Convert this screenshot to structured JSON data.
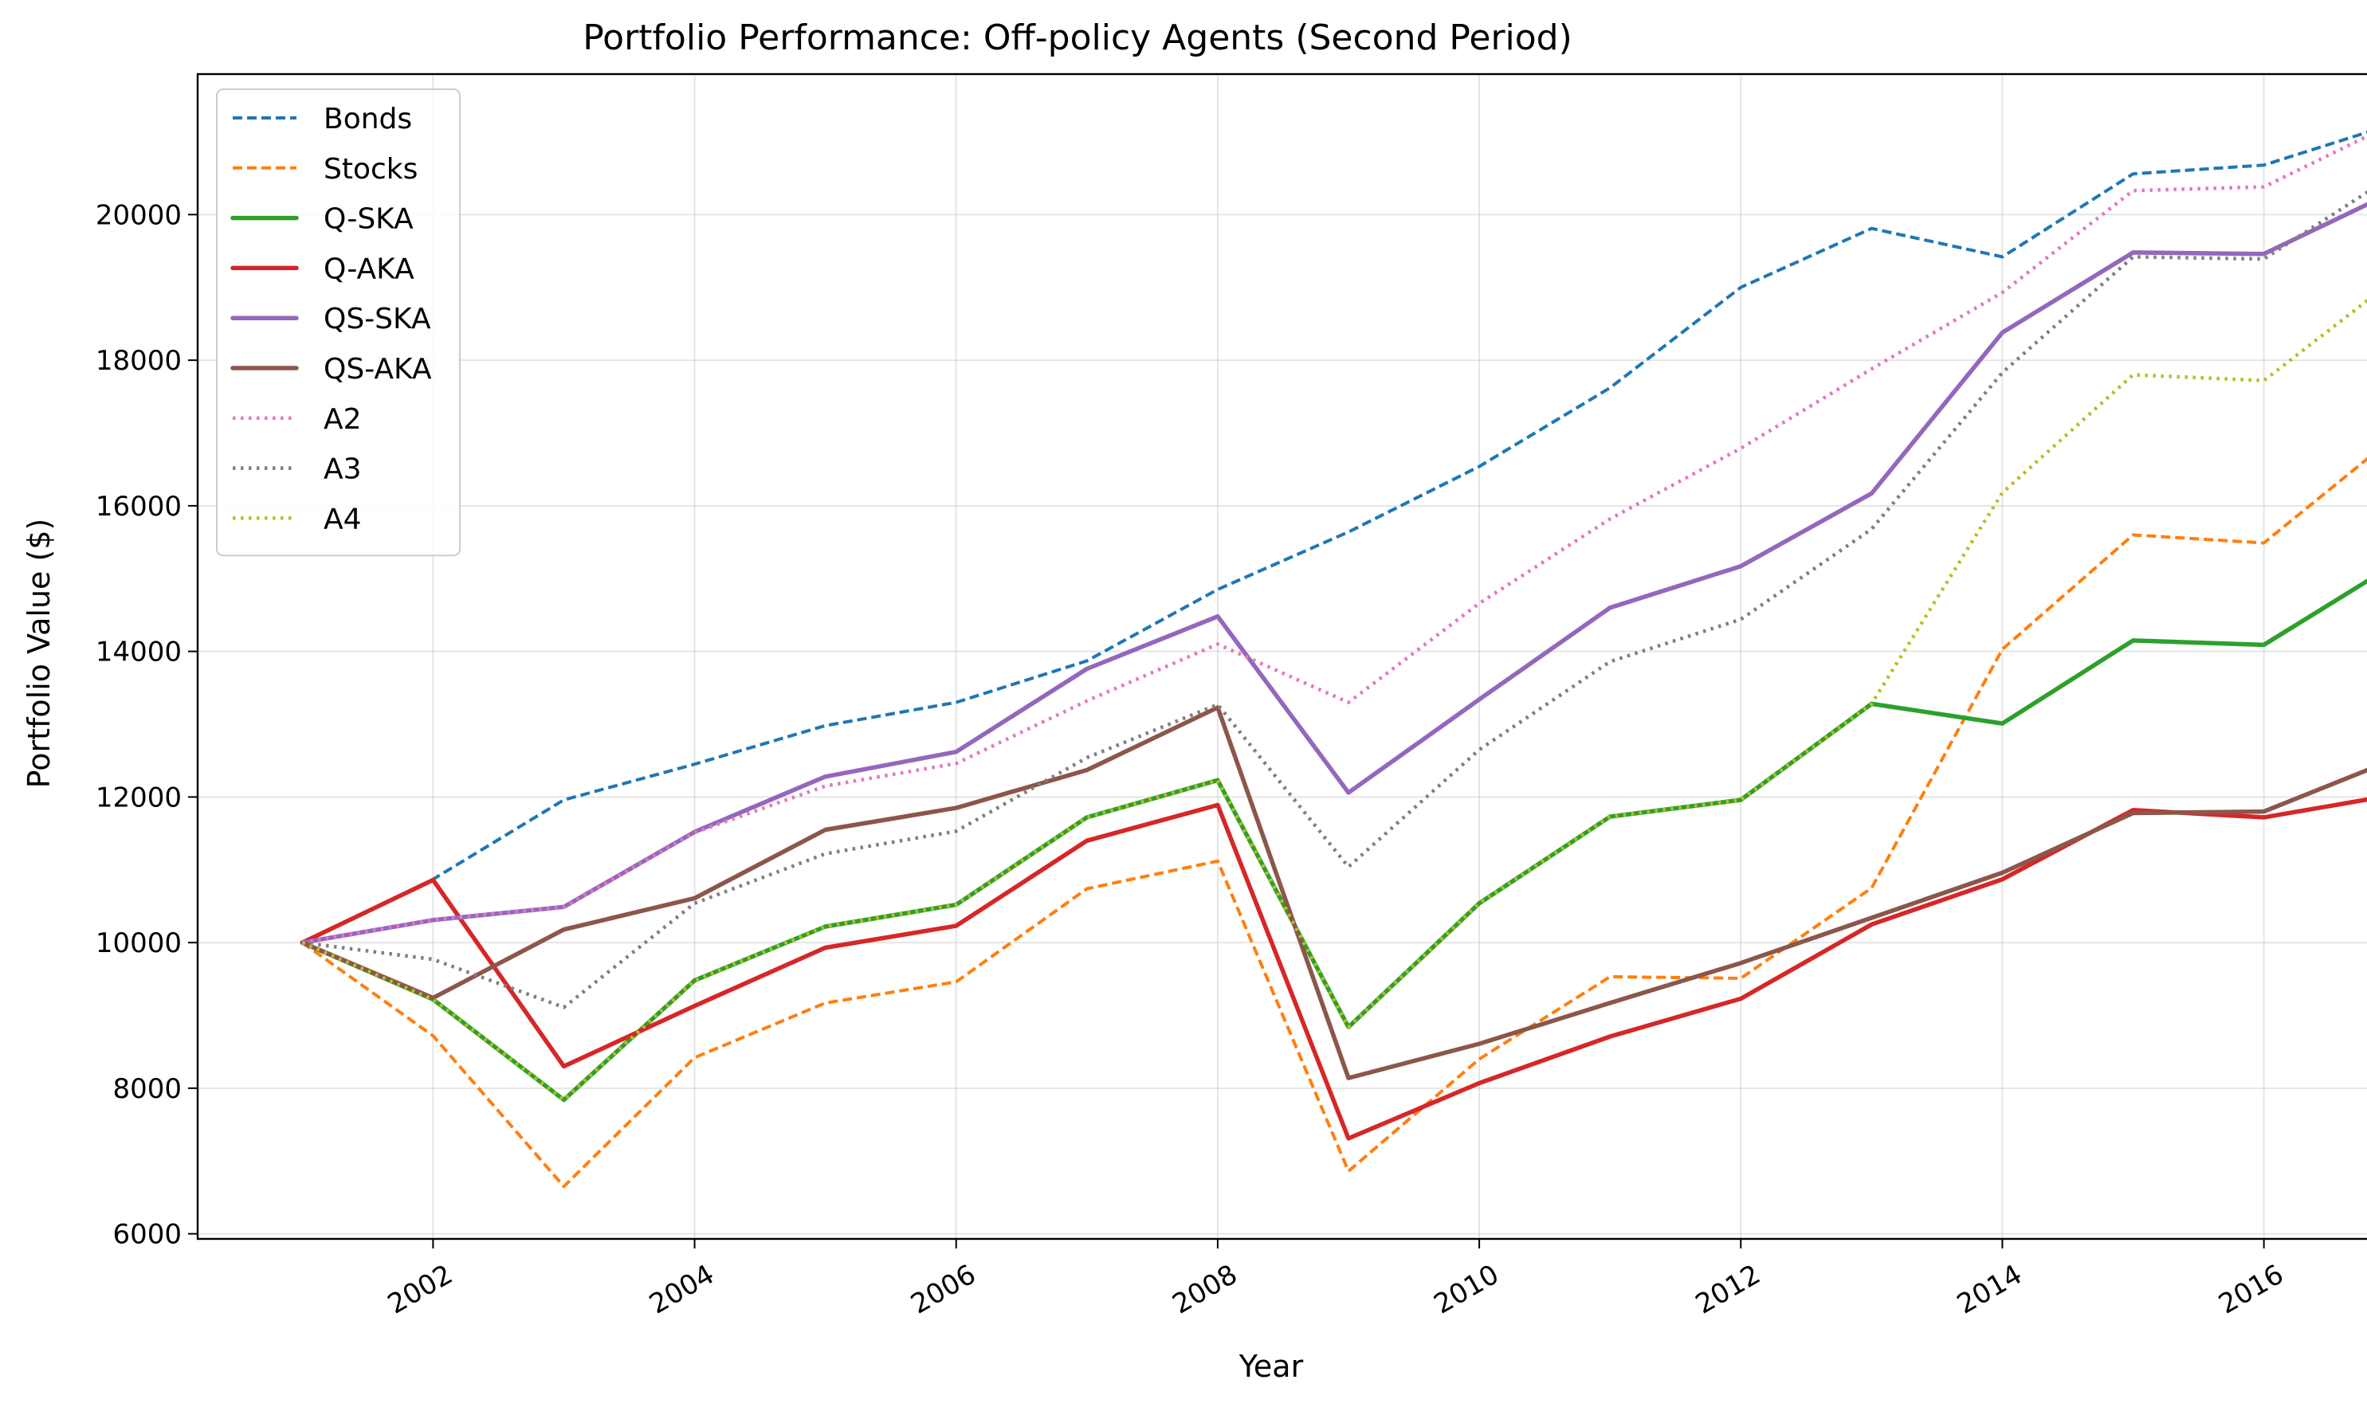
{
  "chart_data": {
    "type": "line",
    "title": "Portfolio Performance: Off-policy Agents (Second Period)",
    "xlabel": "Year",
    "ylabel": "Portfolio Value ($)",
    "x": [
      2001,
      2002,
      2003,
      2004,
      2005,
      2006,
      2007,
      2008,
      2009,
      2010,
      2011,
      2012,
      2013,
      2014,
      2015,
      2016,
      2017
    ],
    "xlim": [
      2000.2,
      2017.8
    ],
    "ylim": [
      5930,
      21930
    ],
    "xticks": [
      2002,
      2004,
      2006,
      2008,
      2010,
      2012,
      2014,
      2016
    ],
    "xtick_labels": [
      "2002",
      "2004",
      "2006",
      "2008",
      "2010",
      "2012",
      "2014",
      "2016"
    ],
    "yticks": [
      6000,
      8000,
      10000,
      12000,
      14000,
      16000,
      18000,
      20000
    ],
    "ytick_labels": [
      "6000",
      "8000",
      "10000",
      "12000",
      "14000",
      "16000",
      "18000",
      "20000"
    ],
    "grid": true,
    "legend_position": "top-left",
    "series": [
      {
        "name": "Bonds",
        "color": "#1f77b4",
        "style": "dashed",
        "values": [
          10000,
          10870,
          11960,
          12450,
          12980,
          13300,
          13870,
          14850,
          15640,
          16540,
          17620,
          19000,
          19810,
          19420,
          20560,
          20680,
          21250
        ]
      },
      {
        "name": "Stocks",
        "color": "#ff7f0e",
        "style": "dashed",
        "values": [
          10000,
          8720,
          6650,
          8420,
          9170,
          9460,
          10740,
          11120,
          6860,
          8400,
          9530,
          9510,
          10750,
          14030,
          15600,
          15490,
          16950
        ]
      },
      {
        "name": "Q-SKA",
        "color": "#2ca02c",
        "style": "solid",
        "values": [
          10000,
          9220,
          7840,
          9480,
          10220,
          10520,
          11720,
          12230,
          8840,
          10540,
          11730,
          11960,
          13280,
          13010,
          14150,
          14090,
          15200
        ]
      },
      {
        "name": "Q-AKA",
        "color": "#d62728",
        "style": "solid",
        "values": [
          10000,
          10860,
          8300,
          9130,
          9930,
          10230,
          11400,
          11890,
          7310,
          8070,
          8710,
          9230,
          10250,
          10870,
          11820,
          11720,
          12030
        ]
      },
      {
        "name": "QS-SKA",
        "color": "#9467bd",
        "style": "solid",
        "values": [
          10000,
          10310,
          10490,
          11520,
          12280,
          12620,
          13760,
          14480,
          12060,
          13340,
          14600,
          15170,
          16170,
          18380,
          19480,
          19460,
          20320
        ]
      },
      {
        "name": "QS-AKA",
        "color": "#8c564b",
        "style": "solid",
        "values": [
          10000,
          9240,
          10180,
          10610,
          11550,
          11850,
          12370,
          13230,
          8140,
          8610,
          9170,
          9720,
          10340,
          10960,
          11780,
          11800,
          12520
        ]
      },
      {
        "name": "A2",
        "color": "#e377c2",
        "style": "dotted",
        "values": [
          10000,
          10310,
          10490,
          11510,
          12150,
          12460,
          13320,
          14100,
          13300,
          14660,
          15820,
          16790,
          17880,
          18930,
          20330,
          20380,
          21260
        ]
      },
      {
        "name": "A3",
        "color": "#7f7f7f",
        "style": "dotted",
        "values": [
          10000,
          9770,
          9110,
          10540,
          11220,
          11530,
          12540,
          13270,
          11040,
          12650,
          13860,
          14440,
          15680,
          17830,
          19420,
          19390,
          20550
        ]
      },
      {
        "name": "A4",
        "color": "#bcbd22",
        "style": "dotted",
        "values": [
          10000,
          9220,
          7840,
          9480,
          10220,
          10520,
          11720,
          12230,
          8840,
          10540,
          11730,
          11960,
          13280,
          16180,
          17800,
          17720,
          19110
        ]
      }
    ]
  }
}
